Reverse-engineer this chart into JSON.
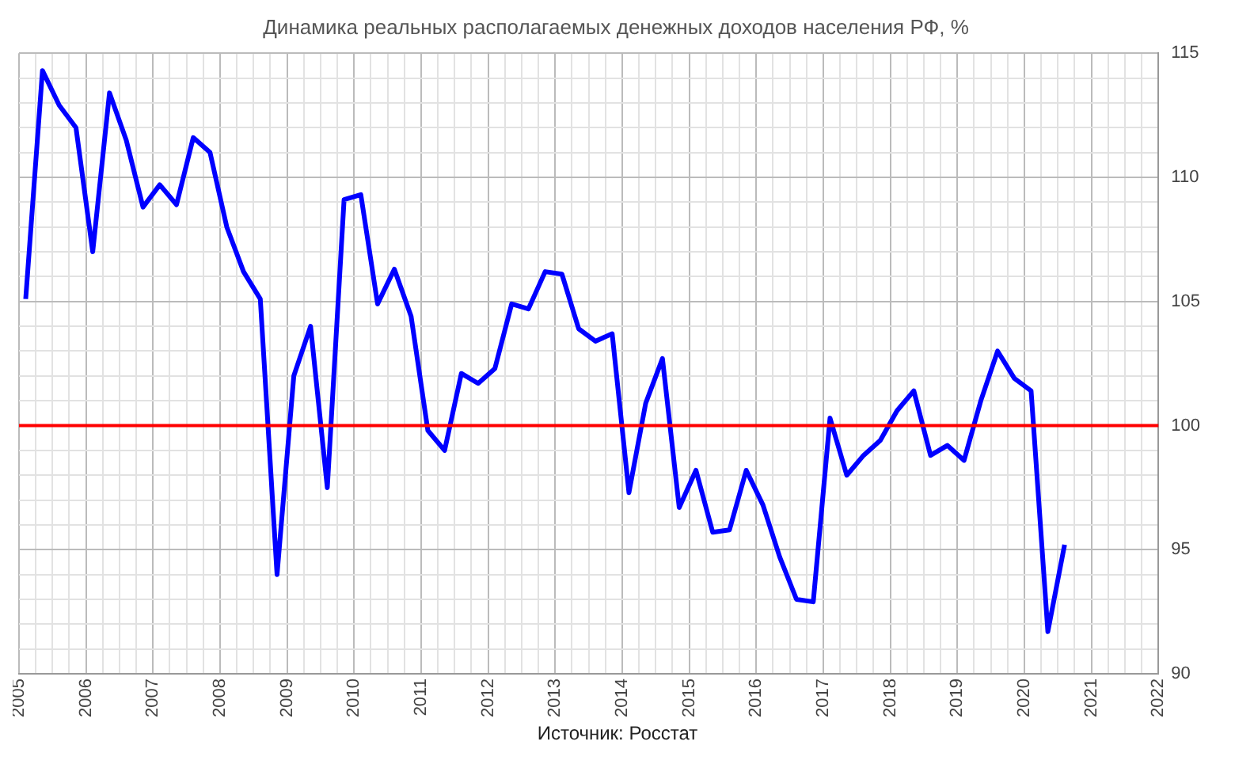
{
  "chart_data": {
    "type": "line",
    "title": "Динамика реальных располагаемых денежных доходов населения РФ, %",
    "x": [
      2005.1,
      2005.35,
      2005.6,
      2005.85,
      2006.1,
      2006.35,
      2006.6,
      2006.85,
      2007.1,
      2007.35,
      2007.6,
      2007.85,
      2008.1,
      2008.35,
      2008.6,
      2008.85,
      2009.1,
      2009.35,
      2009.6,
      2009.85,
      2010.1,
      2010.35,
      2010.6,
      2010.85,
      2011.1,
      2011.35,
      2011.6,
      2011.85,
      2012.1,
      2012.35,
      2012.6,
      2012.85,
      2013.1,
      2013.35,
      2013.6,
      2013.85,
      2014.1,
      2014.35,
      2014.6,
      2014.85,
      2015.1,
      2015.35,
      2015.6,
      2015.85,
      2016.1,
      2016.35,
      2016.6,
      2016.85,
      2017.1,
      2017.35,
      2017.6,
      2017.85,
      2018.1,
      2018.35,
      2018.6,
      2018.85,
      2019.1,
      2019.35,
      2019.6,
      2019.85,
      2020.1,
      2020.35,
      2020.6
    ],
    "series": [
      {
        "color": "#0000ff",
        "values": [
          105.1,
          114.3,
          112.9,
          112.0,
          107.0,
          113.4,
          111.5,
          108.8,
          109.7,
          108.9,
          111.6,
          111.0,
          108.0,
          106.2,
          105.1,
          94.0,
          102.0,
          104.0,
          97.5,
          109.1,
          109.3,
          104.9,
          106.3,
          104.4,
          99.8,
          99.0,
          102.1,
          101.7,
          102.3,
          104.9,
          104.7,
          106.2,
          106.1,
          103.9,
          103.4,
          103.7,
          97.3,
          100.9,
          102.7,
          96.7,
          98.2,
          95.7,
          95.8,
          98.2,
          96.8,
          94.7,
          93.0,
          92.9,
          100.3,
          98.0,
          98.8,
          99.4,
          100.6,
          101.4,
          98.8,
          99.2,
          98.6,
          101.0,
          103.0,
          101.9,
          101.4,
          91.7,
          95.2
        ]
      }
    ],
    "xlim": [
      2005,
      2022
    ],
    "xticks": [
      2005,
      {
        "value": 2005.25,
        "label": null
      },
      {
        "value": 2005.5,
        "label": null
      },
      {
        "value": 2005.75,
        "label": null
      },
      2006,
      {
        "value": 2006.25,
        "label": null
      },
      {
        "value": 2006.5,
        "label": null
      },
      {
        "value": 2006.75,
        "label": null
      },
      2007,
      {
        "value": 2007.25,
        "label": null
      },
      {
        "value": 2007.5,
        "label": null
      },
      {
        "value": 2007.75,
        "label": null
      },
      2008,
      {
        "value": 2008.25,
        "label": null
      },
      {
        "value": 2008.5,
        "label": null
      },
      {
        "value": 2008.75,
        "label": null
      },
      2009,
      {
        "value": 2009.25,
        "label": null
      },
      {
        "value": 2009.5,
        "label": null
      },
      {
        "value": 2009.75,
        "label": null
      },
      2010,
      {
        "value": 2010.25,
        "label": null
      },
      {
        "value": 2010.5,
        "label": null
      },
      {
        "value": 2010.75,
        "label": null
      },
      2011,
      {
        "value": 2011.25,
        "label": null
      },
      {
        "value": 2011.5,
        "label": null
      },
      {
        "value": 2011.75,
        "label": null
      },
      2012,
      {
        "value": 2012.25,
        "label": null
      },
      {
        "value": 2012.5,
        "label": null
      },
      {
        "value": 2012.75,
        "label": null
      },
      2013,
      {
        "value": 2013.25,
        "label": null
      },
      {
        "value": 2013.5,
        "label": null
      },
      {
        "value": 2013.75,
        "label": null
      },
      2014,
      {
        "value": 2014.25,
        "label": null
      },
      {
        "value": 2014.5,
        "label": null
      },
      {
        "value": 2014.75,
        "label": null
      },
      2015,
      {
        "value": 2015.25,
        "label": null
      },
      {
        "value": 2015.5,
        "label": null
      },
      {
        "value": 2015.75,
        "label": null
      },
      2016,
      {
        "value": 2016.25,
        "label": null
      },
      {
        "value": 2016.5,
        "label": null
      },
      {
        "value": 2016.75,
        "label": null
      },
      2017,
      {
        "value": 2017.25,
        "label": null
      },
      {
        "value": 2017.5,
        "label": null
      },
      {
        "value": 2017.75,
        "label": null
      },
      2018,
      {
        "value": 2018.25,
        "label": null
      },
      {
        "value": 2018.5,
        "label": null
      },
      {
        "value": 2018.75,
        "label": null
      },
      2019,
      {
        "value": 2019.25,
        "label": null
      },
      {
        "value": 2019.5,
        "label": null
      },
      {
        "value": 2019.75,
        "label": null
      },
      2020,
      {
        "value": 2020.25,
        "label": null
      },
      {
        "value": 2020.5,
        "label": null
      },
      {
        "value": 2020.75,
        "label": null
      },
      2021,
      {
        "value": 2021.25,
        "label": null
      },
      {
        "value": 2021.5,
        "label": null
      },
      {
        "value": 2021.75,
        "label": null
      },
      2022
    ],
    "ylim": [
      90,
      115
    ],
    "yticks": [
      90,
      {
        "value": 91,
        "label": null
      },
      {
        "value": 92,
        "label": null
      },
      {
        "value": 93,
        "label": null
      },
      {
        "value": 94,
        "label": null
      },
      95,
      {
        "value": 96,
        "label": null
      },
      {
        "value": 97,
        "label": null
      },
      {
        "value": 98,
        "label": null
      },
      {
        "value": 99,
        "label": null
      },
      100,
      {
        "value": 101,
        "label": null
      },
      {
        "value": 102,
        "label": null
      },
      {
        "value": 103,
        "label": null
      },
      {
        "value": 104,
        "label": null
      },
      105,
      {
        "value": 106,
        "label": null
      },
      {
        "value": 107,
        "label": null
      },
      {
        "value": 108,
        "label": null
      },
      {
        "value": 109,
        "label": null
      },
      110,
      {
        "value": 111,
        "label": null
      },
      {
        "value": 112,
        "label": null
      },
      {
        "value": 113,
        "label": null
      },
      {
        "value": 114,
        "label": null
      },
      115
    ],
    "ref_lines": [
      {
        "axis": "y",
        "value": 100,
        "color": "#ff0000"
      }
    ],
    "annotations": [
      "Источник: Росстат"
    ],
    "grid": true,
    "legend": false,
    "marker": "none",
    "line_style": "solid"
  }
}
